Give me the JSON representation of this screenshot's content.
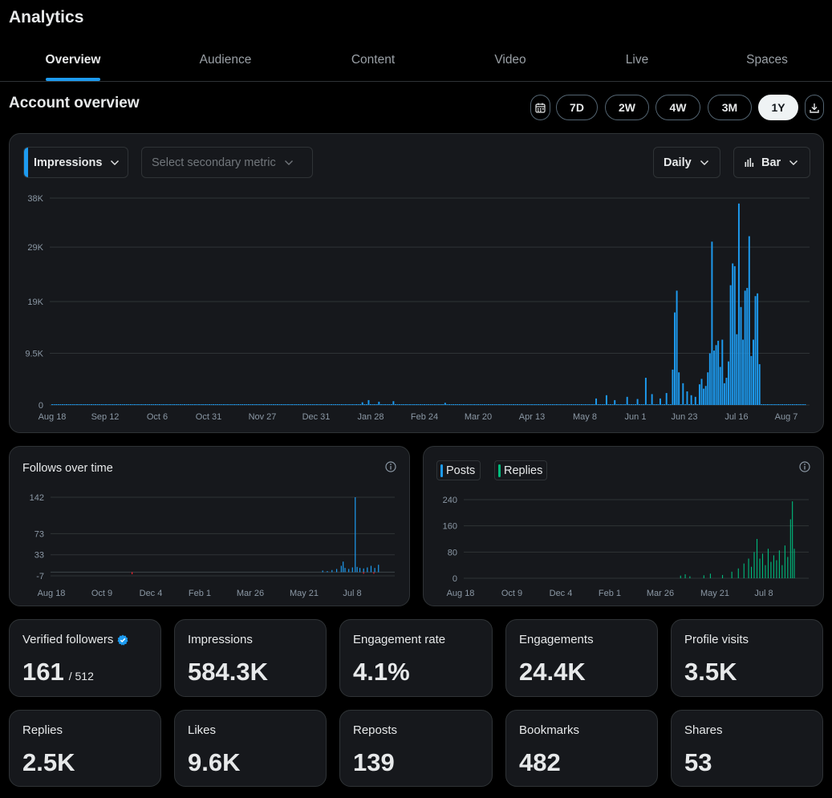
{
  "app": {
    "title": "Analytics"
  },
  "tabs": [
    {
      "label": "Overview",
      "active": true
    },
    {
      "label": "Audience"
    },
    {
      "label": "Content"
    },
    {
      "label": "Video"
    },
    {
      "label": "Live"
    },
    {
      "label": "Spaces"
    }
  ],
  "section": {
    "title": "Account overview"
  },
  "range": {
    "calendar_icon": "calendar-icon",
    "download_icon": "download-icon",
    "options": [
      "7D",
      "2W",
      "4W",
      "3M",
      "1Y"
    ],
    "selected": "1Y"
  },
  "main_chart_controls": {
    "primary_metric": "Impressions",
    "secondary_placeholder": "Select secondary metric",
    "granularity": "Daily",
    "chart_type": "Bar"
  },
  "small_charts": {
    "follows_title": "Follows over time",
    "posts_legend": "Posts",
    "replies_legend": "Replies"
  },
  "colors": {
    "accent": "#1d9bf0",
    "replies": "#00ba7c",
    "negative": "#f4212e",
    "card": "#16181c",
    "border": "#2f3336"
  },
  "chart_data": [
    {
      "name": "impressions",
      "type": "bar",
      "title": "Impressions",
      "ylim": [
        0,
        38000
      ],
      "yticks": [
        {
          "v": 0,
          "label": "0"
        },
        {
          "v": 9500,
          "label": "9.5K"
        },
        {
          "v": 19000,
          "label": "19K"
        },
        {
          "v": 29000,
          "label": "29K"
        },
        {
          "v": 38000,
          "label": "38K"
        }
      ],
      "xticks": [
        "Aug 18",
        "Sep 12",
        "Oct 6",
        "Oct 31",
        "Nov 27",
        "Dec 31",
        "Jan 28",
        "Feb 24",
        "Mar 20",
        "Apr 13",
        "May 8",
        "Jun 1",
        "Jun 23",
        "Jul 16",
        "Aug 7"
      ],
      "days": 365,
      "baseline": 150,
      "peaks": [
        {
          "day": 150,
          "value": 500
        },
        {
          "day": 153,
          "value": 900
        },
        {
          "day": 158,
          "value": 600
        },
        {
          "day": 165,
          "value": 700
        },
        {
          "day": 190,
          "value": 400
        },
        {
          "day": 263,
          "value": 1200
        },
        {
          "day": 268,
          "value": 1800
        },
        {
          "day": 272,
          "value": 900
        },
        {
          "day": 278,
          "value": 1500
        },
        {
          "day": 283,
          "value": 1100
        },
        {
          "day": 287,
          "value": 5000
        },
        {
          "day": 290,
          "value": 2000
        },
        {
          "day": 294,
          "value": 1200
        },
        {
          "day": 297,
          "value": 2200
        },
        {
          "day": 300,
          "value": 6500
        },
        {
          "day": 301,
          "value": 17000
        },
        {
          "day": 302,
          "value": 21000
        },
        {
          "day": 303,
          "value": 6000
        },
        {
          "day": 305,
          "value": 4000
        },
        {
          "day": 307,
          "value": 2500
        },
        {
          "day": 309,
          "value": 1800
        },
        {
          "day": 311,
          "value": 1500
        },
        {
          "day": 313,
          "value": 3800
        },
        {
          "day": 314,
          "value": 4800
        },
        {
          "day": 315,
          "value": 3000
        },
        {
          "day": 316,
          "value": 3500
        },
        {
          "day": 317,
          "value": 6000
        },
        {
          "day": 318,
          "value": 9500
        },
        {
          "day": 319,
          "value": 30000
        },
        {
          "day": 320,
          "value": 10000
        },
        {
          "day": 321,
          "value": 11000
        },
        {
          "day": 322,
          "value": 11800
        },
        {
          "day": 323,
          "value": 7000
        },
        {
          "day": 324,
          "value": 12000
        },
        {
          "day": 325,
          "value": 4000
        },
        {
          "day": 326,
          "value": 5000
        },
        {
          "day": 327,
          "value": 8000
        },
        {
          "day": 328,
          "value": 22000
        },
        {
          "day": 329,
          "value": 26000
        },
        {
          "day": 330,
          "value": 25500
        },
        {
          "day": 331,
          "value": 13000
        },
        {
          "day": 332,
          "value": 37000
        },
        {
          "day": 333,
          "value": 18000
        },
        {
          "day": 334,
          "value": 12000
        },
        {
          "day": 335,
          "value": 21000
        },
        {
          "day": 336,
          "value": 21500
        },
        {
          "day": 337,
          "value": 31000
        },
        {
          "day": 338,
          "value": 9000
        },
        {
          "day": 339,
          "value": 12000
        },
        {
          "day": 340,
          "value": 20000
        },
        {
          "day": 341,
          "value": 20500
        },
        {
          "day": 342,
          "value": 7500
        }
      ]
    },
    {
      "name": "follows",
      "type": "bar",
      "title": "Follows over time",
      "ylim": [
        -7,
        142
      ],
      "yticks": [
        {
          "v": -7,
          "label": "-7"
        },
        {
          "v": 33,
          "label": "33"
        },
        {
          "v": 73,
          "label": "73"
        },
        {
          "v": 142,
          "label": "142"
        }
      ],
      "xticks": [
        "Aug 18",
        "Oct 9",
        "Dec 4",
        "Feb 1",
        "Mar 26",
        "May 21",
        "Jul 8"
      ],
      "days": 365,
      "positive": [
        {
          "day": 290,
          "value": 3
        },
        {
          "day": 295,
          "value": 2
        },
        {
          "day": 300,
          "value": 4
        },
        {
          "day": 305,
          "value": 6
        },
        {
          "day": 310,
          "value": 12
        },
        {
          "day": 312,
          "value": 20
        },
        {
          "day": 314,
          "value": 8
        },
        {
          "day": 318,
          "value": 6
        },
        {
          "day": 322,
          "value": 9
        },
        {
          "day": 325,
          "value": 142
        },
        {
          "day": 327,
          "value": 10
        },
        {
          "day": 330,
          "value": 8
        },
        {
          "day": 334,
          "value": 7
        },
        {
          "day": 338,
          "value": 9
        },
        {
          "day": 342,
          "value": 12
        },
        {
          "day": 346,
          "value": 8
        },
        {
          "day": 350,
          "value": 14
        }
      ],
      "negative": [
        {
          "day": 85,
          "value": -4
        },
        {
          "day": 334,
          "value": -3
        },
        {
          "day": 345,
          "value": -3
        }
      ]
    },
    {
      "name": "posts_replies",
      "type": "bar",
      "title": "Posts / Replies",
      "ylim": [
        0,
        240
      ],
      "yticks": [
        {
          "v": 0,
          "label": "0"
        },
        {
          "v": 80,
          "label": "80"
        },
        {
          "v": 160,
          "label": "160"
        },
        {
          "v": 240,
          "label": "240"
        }
      ],
      "xticks": [
        "Aug 18",
        "Oct 9",
        "Dec 4",
        "Feb 1",
        "Mar 26",
        "May 21",
        "Jul 8"
      ],
      "series": [
        {
          "name": "Posts",
          "color": "#1d9bf0"
        },
        {
          "name": "Replies",
          "color": "#00ba7c"
        }
      ],
      "days": 365,
      "replies": [
        {
          "day": 230,
          "value": 8
        },
        {
          "day": 235,
          "value": 12
        },
        {
          "day": 240,
          "value": 6
        },
        {
          "day": 255,
          "value": 9
        },
        {
          "day": 262,
          "value": 14
        },
        {
          "day": 275,
          "value": 10
        },
        {
          "day": 285,
          "value": 20
        },
        {
          "day": 292,
          "value": 30
        },
        {
          "day": 298,
          "value": 45
        },
        {
          "day": 303,
          "value": 60
        },
        {
          "day": 306,
          "value": 35
        },
        {
          "day": 309,
          "value": 80
        },
        {
          "day": 312,
          "value": 120
        },
        {
          "day": 315,
          "value": 60
        },
        {
          "day": 318,
          "value": 75
        },
        {
          "day": 321,
          "value": 40
        },
        {
          "day": 324,
          "value": 90
        },
        {
          "day": 327,
          "value": 50
        },
        {
          "day": 330,
          "value": 70
        },
        {
          "day": 333,
          "value": 55
        },
        {
          "day": 336,
          "value": 85
        },
        {
          "day": 339,
          "value": 40
        },
        {
          "day": 342,
          "value": 100
        },
        {
          "day": 345,
          "value": 65
        },
        {
          "day": 348,
          "value": 180
        },
        {
          "day": 350,
          "value": 235
        },
        {
          "day": 352,
          "value": 90
        }
      ]
    }
  ],
  "metrics": [
    {
      "label": "Verified followers",
      "value": "161",
      "sub": "/ 512",
      "verified": true
    },
    {
      "label": "Impressions",
      "value": "584.3K"
    },
    {
      "label": "Engagement rate",
      "value": "4.1%"
    },
    {
      "label": "Engagements",
      "value": "24.4K"
    },
    {
      "label": "Profile visits",
      "value": "3.5K"
    },
    {
      "label": "Replies",
      "value": "2.5K"
    },
    {
      "label": "Likes",
      "value": "9.6K"
    },
    {
      "label": "Reposts",
      "value": "139"
    },
    {
      "label": "Bookmarks",
      "value": "482"
    },
    {
      "label": "Shares",
      "value": "53"
    }
  ]
}
